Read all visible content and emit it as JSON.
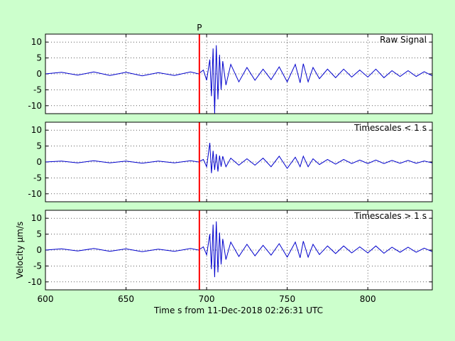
{
  "chart_data": {
    "type": "line",
    "xlabel": "Time s from 11-Dec-2018 02:26:31 UTC",
    "ylabel": "Velocity μm/s",
    "xlim": [
      600,
      840
    ],
    "ylim": [
      -12.5,
      12.5
    ],
    "xticks": [
      600,
      650,
      700,
      750,
      800
    ],
    "yticks": [
      10,
      5,
      0,
      -5,
      -10
    ],
    "grid": "dotted",
    "pick": {
      "label": "P",
      "x": 695.5,
      "color": "#ff0000"
    },
    "trace_color": "#0000cc",
    "panels": [
      {
        "title": "Raw Signal",
        "series": {
          "x": [
            600,
            610,
            620,
            630,
            640,
            650,
            660,
            670,
            680,
            690,
            695,
            698,
            700,
            702,
            703,
            704,
            705,
            706,
            707,
            708,
            709,
            710,
            712,
            715,
            720,
            725,
            730,
            735,
            740,
            745,
            750,
            755,
            758,
            760,
            763,
            766,
            770,
            775,
            780,
            785,
            790,
            795,
            800,
            805,
            810,
            815,
            820,
            825,
            830,
            835,
            840
          ],
          "y": [
            0,
            0.5,
            -0.4,
            0.6,
            -0.5,
            0.5,
            -0.6,
            0.4,
            -0.5,
            0.6,
            0,
            1.2,
            -2.0,
            4.5,
            -7.0,
            8.0,
            -12.5,
            9.0,
            -8.0,
            6.0,
            -5.0,
            4.0,
            -3.5,
            3.0,
            -2.5,
            2.0,
            -2.0,
            1.5,
            -1.8,
            2.2,
            -2.5,
            3.0,
            -2.8,
            3.2,
            -2.5,
            2.0,
            -1.5,
            1.5,
            -1.2,
            1.5,
            -1.0,
            1.2,
            -1.0,
            1.5,
            -1.2,
            1.0,
            -0.8,
            1.0,
            -0.8,
            0.7,
            -0.6
          ]
        }
      },
      {
        "title": "Timescales < 1 s",
        "series": {
          "x": [
            600,
            610,
            620,
            630,
            640,
            650,
            660,
            670,
            680,
            690,
            695,
            698,
            700,
            702,
            703,
            704,
            705,
            706,
            707,
            708,
            709,
            710,
            712,
            715,
            720,
            725,
            730,
            735,
            740,
            745,
            750,
            755,
            758,
            760,
            763,
            766,
            770,
            775,
            780,
            785,
            790,
            795,
            800,
            805,
            810,
            815,
            820,
            825,
            830,
            835,
            840
          ],
          "y": [
            0,
            0.3,
            -0.3,
            0.4,
            -0.3,
            0.3,
            -0.4,
            0.3,
            -0.3,
            0.4,
            0,
            0.8,
            -1.5,
            6.0,
            -3.5,
            3.5,
            -2.5,
            2.5,
            -3.0,
            2.0,
            -1.5,
            1.8,
            -1.5,
            1.2,
            -1.0,
            1.0,
            -1.0,
            1.2,
            -1.5,
            1.8,
            -2.0,
            1.5,
            -1.5,
            1.8,
            -1.5,
            1.0,
            -0.8,
            0.8,
            -0.7,
            0.8,
            -0.5,
            0.6,
            -0.5,
            0.6,
            -0.5,
            0.5,
            -0.4,
            0.5,
            -0.4,
            0.3,
            -0.3
          ]
        }
      },
      {
        "title": "Timescales > 1 s",
        "series": {
          "x": [
            600,
            610,
            620,
            630,
            640,
            650,
            660,
            670,
            680,
            690,
            695,
            698,
            700,
            702,
            703,
            704,
            705,
            706,
            707,
            708,
            709,
            710,
            712,
            715,
            720,
            725,
            730,
            735,
            740,
            745,
            750,
            755,
            758,
            760,
            763,
            766,
            770,
            775,
            780,
            785,
            790,
            795,
            800,
            805,
            810,
            815,
            820,
            825,
            830,
            835,
            840
          ],
          "y": [
            0,
            0.4,
            -0.3,
            0.5,
            -0.4,
            0.4,
            -0.5,
            0.3,
            -0.4,
            0.5,
            0,
            1.0,
            -1.5,
            5.0,
            -6.0,
            8.0,
            -8.5,
            9.0,
            -7.0,
            5.5,
            -4.5,
            3.5,
            -3.0,
            2.5,
            -2.0,
            1.8,
            -1.8,
            1.5,
            -1.6,
            2.0,
            -2.2,
            2.5,
            -2.4,
            2.8,
            -2.2,
            1.8,
            -1.4,
            1.3,
            -1.1,
            1.3,
            -0.9,
            1.0,
            -0.9,
            1.3,
            -1.0,
            0.9,
            -0.7,
            0.9,
            -0.7,
            0.6,
            -0.5
          ]
        }
      }
    ]
  }
}
